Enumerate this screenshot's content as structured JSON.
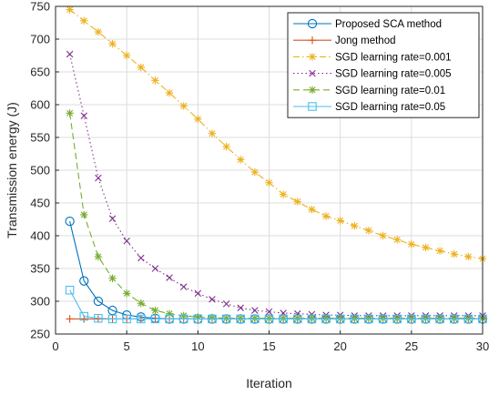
{
  "chart_data": {
    "type": "line",
    "title": "",
    "xlabel": "Iteration",
    "ylabel": "Transmission energy (J)",
    "xlim": [
      0,
      30
    ],
    "ylim": [
      250,
      750
    ],
    "xticks": [
      0,
      5,
      10,
      15,
      20,
      25,
      30
    ],
    "yticks": [
      250,
      300,
      350,
      400,
      450,
      500,
      550,
      600,
      650,
      700,
      750
    ],
    "grid": true,
    "legend_position": "top-right",
    "x": [
      1,
      2,
      3,
      4,
      5,
      6,
      7,
      8,
      9,
      10,
      11,
      12,
      13,
      14,
      15,
      16,
      17,
      18,
      19,
      20,
      21,
      22,
      23,
      24,
      25,
      26,
      27,
      28,
      29,
      30
    ],
    "series": [
      {
        "name": "Proposed SCA method",
        "color": "#0072BD",
        "line_style": "solid",
        "marker": "circle",
        "values": [
          422,
          331,
          300,
          286,
          279,
          276,
          274,
          273,
          273,
          273,
          273,
          273,
          273,
          273,
          273,
          273,
          273,
          273,
          273,
          273,
          273,
          273,
          273,
          273,
          273,
          273,
          273,
          273,
          273,
          273
        ]
      },
      {
        "name": "Jong method",
        "color": "#D95319",
        "line_style": "solid",
        "marker": "plus",
        "values": [
          273,
          273,
          273,
          273,
          273,
          273,
          273,
          273,
          273,
          273,
          273,
          273,
          273,
          273,
          273,
          273,
          273,
          273,
          273,
          273,
          273,
          273,
          273,
          273,
          273,
          273,
          273,
          273,
          273,
          273
        ]
      },
      {
        "name": "SGD learning rate=0.001",
        "color": "#EDB120",
        "line_style": "dashdot",
        "marker": "asterisk",
        "values": [
          745,
          728,
          711,
          693,
          675,
          657,
          637,
          618,
          598,
          578,
          556,
          536,
          516,
          497,
          481,
          463,
          452,
          440,
          430,
          423,
          415,
          408,
          400,
          394,
          387,
          382,
          377,
          372,
          368,
          365
        ]
      },
      {
        "name": "SGD learning rate=0.005",
        "color": "#7E2F8E",
        "line_style": "dotted",
        "marker": "x",
        "values": [
          677,
          583,
          488,
          426,
          392,
          366,
          350,
          336,
          322,
          312,
          303,
          296,
          290,
          286,
          284,
          282,
          281,
          280,
          279,
          279,
          278,
          278,
          278,
          278,
          278,
          278,
          278,
          278,
          278,
          278
        ]
      },
      {
        "name": "SGD learning rate=0.01",
        "color": "#77AC30",
        "line_style": "dashed",
        "marker": "asterisk",
        "values": [
          587,
          432,
          368,
          335,
          312,
          297,
          286,
          281,
          278,
          276,
          275,
          274,
          274,
          274,
          274,
          274,
          274,
          274,
          274,
          274,
          274,
          274,
          274,
          274,
          274,
          274,
          274,
          274,
          274,
          274
        ]
      },
      {
        "name": "SGD learning rate=0.05",
        "color": "#4DBEEE",
        "line_style": "solid",
        "marker": "square",
        "values": [
          317,
          277,
          274,
          273,
          273,
          273,
          273,
          273,
          273,
          273,
          273,
          273,
          273,
          273,
          273,
          273,
          273,
          273,
          273,
          273,
          273,
          273,
          273,
          273,
          273,
          273,
          273,
          273,
          273,
          273
        ]
      }
    ]
  }
}
